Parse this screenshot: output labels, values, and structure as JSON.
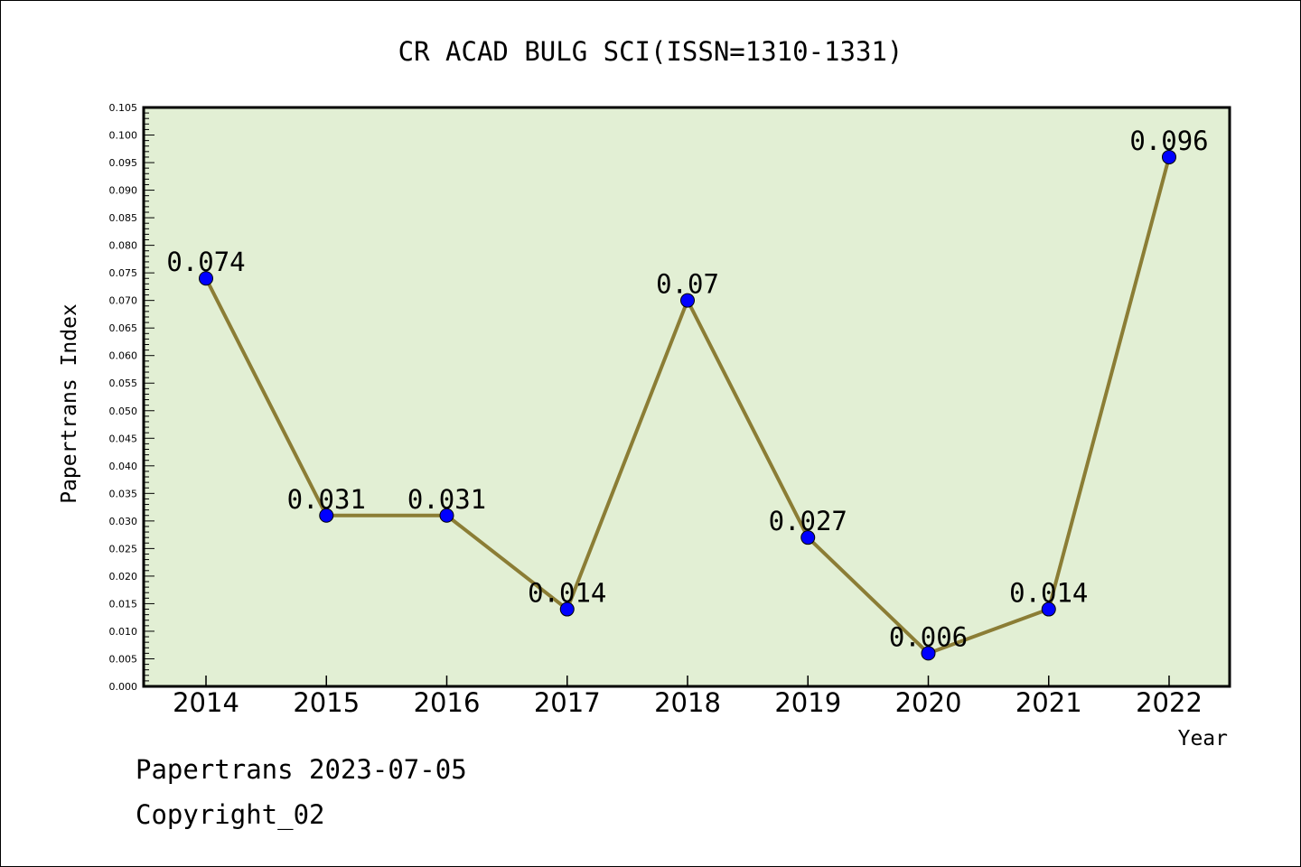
{
  "chart_data": {
    "type": "line",
    "title": "CR ACAD BULG SCI(ISSN=1310-1331)",
    "xlabel": "Year",
    "ylabel": "Papertrans Index",
    "categories": [
      "2014",
      "2015",
      "2016",
      "2017",
      "2018",
      "2019",
      "2020",
      "2021",
      "2022"
    ],
    "series": [
      {
        "values": [
          0.074,
          0.031,
          0.031,
          0.014,
          0.07,
          0.027,
          0.006,
          0.014,
          0.096
        ],
        "labels": [
          "0.074",
          "0.031",
          "0.031",
          "0.014",
          "0.07",
          "0.027",
          "0.006",
          "0.014",
          "0.096"
        ]
      }
    ],
    "ylim": [
      0,
      0.105
    ],
    "yticks": [
      "0.000",
      "0.005",
      "0.010",
      "0.015",
      "0.020",
      "0.025",
      "0.030",
      "0.035",
      "0.040",
      "0.045",
      "0.050",
      "0.055",
      "0.060",
      "0.065",
      "0.070",
      "0.075",
      "0.080",
      "0.085",
      "0.090",
      "0.095",
      "0.100",
      "0.105"
    ],
    "grid": false,
    "colors": {
      "plot_background": "#e2efd4",
      "line": "#8b7d35",
      "marker": "#0000ff"
    }
  },
  "footer": {
    "line1": "Papertrans 2023-07-05",
    "line2": "Copyright_02"
  }
}
